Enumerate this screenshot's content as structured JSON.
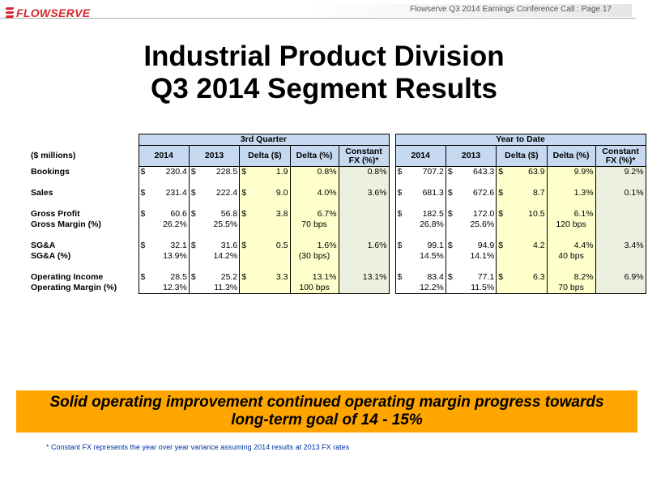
{
  "header": {
    "logo_text": "FLOWSERVE",
    "page_caption": "Flowserve Q3 2014 Earnings Conference Call : Page 17"
  },
  "title": {
    "line1": "Industrial Product Division",
    "line2": "Q3 2014 Segment Results"
  },
  "table": {
    "units_label": "($ millions)",
    "group_q3": "3rd Quarter",
    "group_ytd": "Year to Date",
    "col_2014": "2014",
    "col_2013": "2013",
    "col_delta_d": "Delta ($)",
    "col_delta_p": "Delta (%)",
    "col_fx_1": "Constant",
    "col_fx_2": "FX (%)*",
    "currency": "$",
    "rows": [
      {
        "label": "Bookings",
        "q": [
          "230.4",
          "228.5",
          "1.9",
          "0.8%",
          "0.8%"
        ],
        "y": [
          "707.2",
          "643.3",
          "63.9",
          "9.9%",
          "9.2%"
        ]
      },
      {
        "label": "Sales",
        "q": [
          "231.4",
          "222.4",
          "9.0",
          "4.0%",
          "3.6%"
        ],
        "y": [
          "681.3",
          "672.6",
          "8.7",
          "1.3%",
          "0.1%"
        ]
      },
      {
        "label": "Gross Profit",
        "q": [
          "60.6",
          "56.8",
          "3.8",
          "6.7%",
          ""
        ],
        "y": [
          "182.5",
          "172.0",
          "10.5",
          "6.1%",
          ""
        ]
      },
      {
        "label": "Gross Margin (%)",
        "q": [
          "26.2%",
          "25.5%",
          "",
          "70 bps",
          ""
        ],
        "y": [
          "26.8%",
          "25.6%",
          "",
          "120 bps",
          ""
        ]
      },
      {
        "label": "SG&A",
        "q": [
          "32.1",
          "31.6",
          "0.5",
          "1.6%",
          "1.6%"
        ],
        "y": [
          "99.1",
          "94.9",
          "4.2",
          "4.4%",
          "3.4%"
        ]
      },
      {
        "label": "SG&A (%)",
        "q": [
          "13.9%",
          "14.2%",
          "",
          "(30 bps)",
          ""
        ],
        "y": [
          "14.5%",
          "14.1%",
          "",
          "40 bps",
          ""
        ]
      },
      {
        "label": "Operating Income",
        "q": [
          "28.5",
          "25.2",
          "3.3",
          "13.1%",
          "13.1%"
        ],
        "y": [
          "83.4",
          "77.1",
          "6.3",
          "8.2%",
          "6.9%"
        ]
      },
      {
        "label": "Operating Margin (%)",
        "q": [
          "12.3%",
          "11.3%",
          "",
          "100 bps",
          ""
        ],
        "y": [
          "12.2%",
          "11.5%",
          "",
          "70 bps",
          ""
        ]
      }
    ]
  },
  "banner": {
    "line1": "Solid operating improvement continued operating margin progress towards",
    "line2": "long-term goal of 14 - 15%"
  },
  "footnote": "* Constant FX represents the year over year variance assuming 2014 results at 2013 FX rates",
  "colors": {
    "brand_red": "#d8262e",
    "header_blue": "#c6d9f1",
    "delta_yellow": "#ffffcc",
    "fx_green": "#ebf1de",
    "banner_orange": "#ffa500",
    "footnote_blue": "#0033a0"
  }
}
